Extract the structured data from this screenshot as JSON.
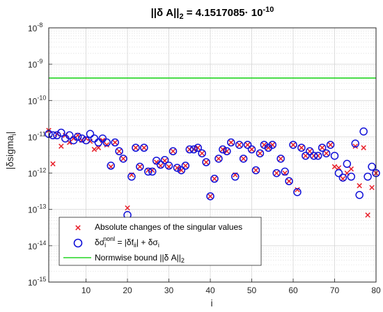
{
  "chart_data": {
    "type": "scatter",
    "title": "||δ A||",
    "title_sub": "2",
    "title_value": " = 4.1517085· 10",
    "title_exp": "-10",
    "xlabel": "i",
    "ylabel": "|δsigma",
    "ylabel_sub": "i",
    "ylabel_end": "|",
    "xlim": [
      1,
      80
    ],
    "ylim_log10": [
      -15,
      -8
    ],
    "x_ticks": [
      "10",
      "20",
      "30",
      "40",
      "50",
      "60",
      "70",
      "80"
    ],
    "y_ticks": [
      {
        "base": "10",
        "exp": "-8"
      },
      {
        "base": "10",
        "exp": "-9"
      },
      {
        "base": "10",
        "exp": "-10"
      },
      {
        "base": "10",
        "exp": "-11"
      },
      {
        "base": "10",
        "exp": "-12"
      },
      {
        "base": "10",
        "exp": "-13"
      },
      {
        "base": "10",
        "exp": "-14"
      },
      {
        "base": "10",
        "exp": "-15"
      }
    ],
    "grid": true,
    "legend_position": "bottom-left",
    "legend": {
      "cross_label": "Absolute changes of the singular values",
      "circle_label_a": "δσ",
      "circle_label_sub": "i",
      "circle_label_sup": "nonl",
      "circle_label_b": " = |δf",
      "circle_label_sub2": "ii",
      "circle_label_c": "| + δσ",
      "circle_label_sub3": "i",
      "line_label_a": "Normwise bound ||δ A||",
      "line_label_sub": "2"
    },
    "colors": {
      "cross": "#e8202a",
      "circle": "#1010d8",
      "bound": "#22d622"
    },
    "series": [
      {
        "marker": "x",
        "x": [
          1,
          2,
          3,
          4,
          5,
          6,
          7,
          8,
          9,
          10,
          11,
          12,
          13,
          14,
          15,
          16,
          17,
          18,
          19,
          20,
          21,
          22,
          23,
          24,
          25,
          26,
          27,
          28,
          29,
          30,
          31,
          32,
          33,
          34,
          35,
          36,
          37,
          38,
          39,
          40,
          41,
          42,
          43,
          44,
          45,
          46,
          47,
          48,
          49,
          50,
          51,
          52,
          53,
          54,
          55,
          56,
          57,
          58,
          59,
          60,
          61,
          62,
          63,
          64,
          65,
          66,
          67,
          68,
          69,
          70,
          71,
          72,
          73,
          74,
          75,
          76,
          77,
          78,
          79,
          80
        ],
        "y": [
          1.5e-11,
          1.8e-12,
          1.2e-11,
          5.5e-12,
          1.1e-11,
          7e-12,
          9e-12,
          1.1e-11,
          8e-12,
          9e-12,
          7.5e-12,
          4.5e-12,
          5e-12,
          8e-12,
          6e-12,
          1.5e-12,
          7e-12,
          4e-12,
          2.5e-12,
          1.1e-13,
          9e-13,
          5e-12,
          1.5e-12,
          5e-12,
          1.2e-12,
          1.2e-12,
          2e-12,
          1.6e-12,
          2.2e-12,
          1.5e-12,
          4e-12,
          1.4e-12,
          1.2e-12,
          1.6e-12,
          4.5e-12,
          4.5e-12,
          5e-12,
          3.5e-12,
          2e-12,
          2.3e-13,
          7e-13,
          2.5e-12,
          4.5e-12,
          4e-12,
          7e-12,
          9e-13,
          6e-12,
          2.5e-12,
          6e-12,
          4.5e-12,
          1.2e-12,
          3.5e-12,
          6e-12,
          5e-12,
          6e-12,
          1e-12,
          2.5e-12,
          1e-12,
          6e-13,
          6e-12,
          3.5e-13,
          5e-12,
          3e-12,
          4e-12,
          3e-12,
          3e-12,
          5e-12,
          3.5e-12,
          6e-12,
          1.5e-12,
          1.4e-12,
          7e-13,
          1e-12,
          1.3e-12,
          5.5e-12,
          4.5e-13,
          5e-12,
          7e-14,
          4e-13,
          1e-12
        ]
      },
      {
        "marker": "o",
        "x": [
          1,
          2,
          3,
          4,
          5,
          6,
          7,
          8,
          9,
          10,
          11,
          12,
          13,
          14,
          15,
          16,
          17,
          18,
          19,
          20,
          21,
          22,
          23,
          24,
          25,
          26,
          27,
          28,
          29,
          30,
          31,
          32,
          33,
          34,
          35,
          36,
          37,
          38,
          39,
          40,
          41,
          42,
          43,
          44,
          45,
          46,
          47,
          48,
          49,
          50,
          51,
          52,
          53,
          54,
          55,
          56,
          57,
          58,
          59,
          60,
          61,
          62,
          63,
          64,
          65,
          66,
          67,
          68,
          69,
          70,
          71,
          72,
          73,
          74,
          75,
          76,
          77,
          78,
          79,
          80
        ],
        "y": [
          1.2e-11,
          1.1e-11,
          1.1e-11,
          1.3e-11,
          9e-12,
          1.1e-11,
          8e-12,
          1e-11,
          9e-12,
          8e-12,
          1.2e-11,
          9e-12,
          7e-12,
          9e-12,
          7e-12,
          1.6e-12,
          7e-12,
          4e-12,
          2.5e-12,
          7e-14,
          8e-13,
          5e-12,
          1.5e-12,
          5e-12,
          1.1e-12,
          1.1e-12,
          2.2e-12,
          1.7e-12,
          2.3e-12,
          1.6e-12,
          4e-12,
          1.4e-12,
          1.2e-12,
          1.6e-12,
          4.5e-12,
          4.5e-12,
          5e-12,
          3.5e-12,
          2e-12,
          2.3e-13,
          7e-13,
          2.5e-12,
          4.5e-12,
          4e-12,
          7e-12,
          8e-13,
          6e-12,
          2.5e-12,
          6e-12,
          4.5e-12,
          1.2e-12,
          3.5e-12,
          6e-12,
          5e-12,
          6e-12,
          1e-12,
          2.5e-12,
          1.1e-12,
          6e-13,
          6e-12,
          3e-13,
          5e-12,
          3e-12,
          4e-12,
          3e-12,
          3e-12,
          5e-12,
          3.5e-12,
          6e-12,
          3e-12,
          1e-12,
          7.5e-13,
          1.8e-12,
          8e-13,
          6.5e-12,
          2.5e-13,
          1.4e-11,
          8e-13,
          1.5e-12,
          1e-12
        ]
      }
    ],
    "bound_value": 4.1517085e-10
  }
}
